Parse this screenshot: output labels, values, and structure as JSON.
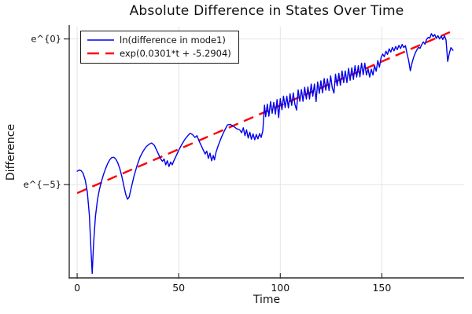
{
  "chart_data": {
    "type": "line",
    "title": "Absolute Difference in States Over Time",
    "xlabel": "Time",
    "ylabel": "Difference",
    "y_scale": "ln",
    "grid": true,
    "legend_position": "top-left",
    "xlim": [
      -3.9,
      190.5
    ],
    "ylim_ln": [
      -8.2,
      0.42
    ],
    "x_ticks": [
      {
        "label": "0",
        "value": 0
      },
      {
        "label": "50",
        "value": 50
      },
      {
        "label": "100",
        "value": 100
      },
      {
        "label": "150",
        "value": 150
      }
    ],
    "y_ticks": [
      {
        "label": "e^{0}",
        "value": 0
      },
      {
        "label": "e^{−5}",
        "value": -5
      }
    ],
    "series": [
      {
        "name": "ln(difference in mode1)",
        "color": "#0000ee",
        "style": "solid",
        "width": 1.4,
        "points_t_ln": [
          [
            0,
            -4.54
          ],
          [
            1,
            -4.5
          ],
          [
            2,
            -4.52
          ],
          [
            3,
            -4.62
          ],
          [
            4,
            -4.85
          ],
          [
            5,
            -5.25
          ],
          [
            6,
            -6.05
          ],
          [
            6.8,
            -7.2
          ],
          [
            7.4,
            -8.05
          ],
          [
            8.1,
            -7.0
          ],
          [
            9,
            -6.1
          ],
          [
            10,
            -5.52
          ],
          [
            11,
            -5.15
          ],
          [
            12,
            -4.88
          ],
          [
            13,
            -4.65
          ],
          [
            14,
            -4.45
          ],
          [
            15,
            -4.28
          ],
          [
            16,
            -4.15
          ],
          [
            17,
            -4.07
          ],
          [
            18,
            -4.06
          ],
          [
            19,
            -4.12
          ],
          [
            20,
            -4.25
          ],
          [
            21,
            -4.45
          ],
          [
            22,
            -4.72
          ],
          [
            23,
            -5.05
          ],
          [
            24,
            -5.35
          ],
          [
            24.8,
            -5.5
          ],
          [
            25.6,
            -5.42
          ],
          [
            26.5,
            -5.15
          ],
          [
            28,
            -4.7
          ],
          [
            29.5,
            -4.35
          ],
          [
            31,
            -4.05
          ],
          [
            32.5,
            -3.85
          ],
          [
            34,
            -3.7
          ],
          [
            35.5,
            -3.61
          ],
          [
            36.7,
            -3.57
          ],
          [
            38,
            -3.65
          ],
          [
            39,
            -3.8
          ],
          [
            40,
            -3.95
          ],
          [
            41,
            -4.1
          ],
          [
            42,
            -4.2
          ],
          [
            42.8,
            -4.12
          ],
          [
            43.6,
            -4.32
          ],
          [
            44.4,
            -4.18
          ],
          [
            45.2,
            -4.38
          ],
          [
            46,
            -4.22
          ],
          [
            46.8,
            -4.32
          ],
          [
            47.6,
            -4.18
          ],
          [
            48.5,
            -4.05
          ],
          [
            50,
            -3.82
          ],
          [
            51.5,
            -3.62
          ],
          [
            53,
            -3.45
          ],
          [
            54.5,
            -3.32
          ],
          [
            55.6,
            -3.24
          ],
          [
            56.8,
            -3.28
          ],
          [
            58,
            -3.38
          ],
          [
            59,
            -3.32
          ],
          [
            60,
            -3.5
          ],
          [
            61,
            -3.65
          ],
          [
            62,
            -3.8
          ],
          [
            63,
            -3.95
          ],
          [
            63.8,
            -3.85
          ],
          [
            64.6,
            -4.1
          ],
          [
            65.4,
            -3.92
          ],
          [
            66.2,
            -4.18
          ],
          [
            67,
            -4.0
          ],
          [
            67.6,
            -4.15
          ],
          [
            68.4,
            -3.88
          ],
          [
            69.5,
            -3.65
          ],
          [
            71,
            -3.38
          ],
          [
            72.5,
            -3.15
          ],
          [
            74,
            -2.95
          ],
          [
            75.3,
            -2.93
          ],
          [
            77,
            -3.0
          ],
          [
            78.5,
            -3.08
          ],
          [
            80,
            -3.12
          ],
          [
            81,
            -3.22
          ],
          [
            81.8,
            -3.05
          ],
          [
            82.6,
            -3.32
          ],
          [
            83.4,
            -3.12
          ],
          [
            84.2,
            -3.4
          ],
          [
            85,
            -3.2
          ],
          [
            85.8,
            -3.44
          ],
          [
            86.6,
            -3.26
          ],
          [
            87.4,
            -3.46
          ],
          [
            88.2,
            -3.28
          ],
          [
            89,
            -3.43
          ],
          [
            89.8,
            -3.25
          ],
          [
            90.6,
            -3.38
          ],
          [
            91.4,
            -3.15
          ],
          [
            92.2,
            -2.27
          ],
          [
            92.8,
            -2.67
          ],
          [
            93.6,
            -2.24
          ],
          [
            94.4,
            -2.65
          ],
          [
            95.2,
            -2.15
          ],
          [
            96,
            -2.55
          ],
          [
            96.8,
            -2.18
          ],
          [
            97.6,
            -2.58
          ],
          [
            98.4,
            -2.08
          ],
          [
            99.2,
            -2.7
          ],
          [
            100,
            -2.05
          ],
          [
            100.8,
            -2.43
          ],
          [
            101.6,
            -1.96
          ],
          [
            102.4,
            -2.36
          ],
          [
            103.2,
            -1.96
          ],
          [
            104,
            -2.37
          ],
          [
            104.8,
            -1.88
          ],
          [
            105.6,
            -2.28
          ],
          [
            106.4,
            -1.85
          ],
          [
            107.2,
            -2.25
          ],
          [
            108,
            -2.44
          ],
          [
            108.8,
            -1.75
          ],
          [
            109.6,
            -2.14
          ],
          [
            110.4,
            -1.74
          ],
          [
            111.2,
            -2.14
          ],
          [
            112,
            -1.66
          ],
          [
            112.8,
            -2.06
          ],
          [
            113.6,
            -1.65
          ],
          [
            114.4,
            -2.06
          ],
          [
            115.2,
            -1.55
          ],
          [
            116,
            -1.97
          ],
          [
            116.8,
            -1.55
          ],
          [
            117.6,
            -2.15
          ],
          [
            118.4,
            -1.48
          ],
          [
            119.2,
            -1.87
          ],
          [
            120,
            -1.44
          ],
          [
            120.8,
            -1.85
          ],
          [
            121.6,
            -1.36
          ],
          [
            122.4,
            -1.76
          ],
          [
            123.2,
            -1.37
          ],
          [
            124,
            -1.77
          ],
          [
            124.8,
            -1.27
          ],
          [
            125.6,
            -1.68
          ],
          [
            126.4,
            -1.86
          ],
          [
            127.2,
            -1.21
          ],
          [
            128,
            -1.61
          ],
          [
            128.8,
            -1.18
          ],
          [
            129.6,
            -1.59
          ],
          [
            130.4,
            -1.1
          ],
          [
            131.2,
            -1.5
          ],
          [
            132,
            -1.1
          ],
          [
            132.8,
            -1.5
          ],
          [
            133.6,
            -1.01
          ],
          [
            134.4,
            -1.42
          ],
          [
            135.2,
            -0.99
          ],
          [
            136,
            -1.39
          ],
          [
            136.8,
            -0.92
          ],
          [
            137.6,
            -1.31
          ],
          [
            138.4,
            -0.92
          ],
          [
            139.2,
            -1.3
          ],
          [
            140,
            -0.83
          ],
          [
            140.8,
            -1.23
          ],
          [
            141.6,
            -0.83
          ],
          [
            142.4,
            -1.24
          ],
          [
            143.2,
            -1.03
          ],
          [
            144,
            -1.31
          ],
          [
            144.8,
            -1.04
          ],
          [
            145.6,
            -1.24
          ],
          [
            146.4,
            -0.92
          ],
          [
            147.2,
            -1.11
          ],
          [
            148,
            -0.74
          ],
          [
            148.8,
            -0.97
          ],
          [
            149.6,
            -0.64
          ],
          [
            150.4,
            -0.52
          ],
          [
            151.2,
            -0.61
          ],
          [
            152,
            -0.42
          ],
          [
            152.8,
            -0.53
          ],
          [
            153.6,
            -0.34
          ],
          [
            154.4,
            -0.45
          ],
          [
            155.2,
            -0.29
          ],
          [
            156,
            -0.41
          ],
          [
            156.8,
            -0.26
          ],
          [
            157.6,
            -0.37
          ],
          [
            158.4,
            -0.22
          ],
          [
            159.2,
            -0.33
          ],
          [
            160,
            -0.19
          ],
          [
            160.8,
            -0.3
          ],
          [
            161.6,
            -0.23
          ],
          [
            162.4,
            -0.5
          ],
          [
            163.2,
            -0.74
          ],
          [
            164,
            -1.09
          ],
          [
            164.8,
            -0.84
          ],
          [
            165.6,
            -0.64
          ],
          [
            166.4,
            -0.49
          ],
          [
            167.2,
            -0.38
          ],
          [
            168,
            -0.29
          ],
          [
            168.8,
            -0.32
          ],
          [
            169.6,
            -0.2
          ],
          [
            170.4,
            -0.1
          ],
          [
            171.2,
            -0.18
          ],
          [
            172,
            -0.02
          ],
          [
            172.8,
            0.05
          ],
          [
            173.6,
            0.03
          ],
          [
            174.4,
            0.18
          ],
          [
            175.2,
            0.08
          ],
          [
            176,
            0.15
          ],
          [
            176.8,
            0.02
          ],
          [
            177.6,
            0.11
          ],
          [
            178.4,
            0.0
          ],
          [
            179.2,
            0.1
          ],
          [
            180,
            -0.02
          ],
          [
            180.8,
            0.11
          ],
          [
            181.6,
            -0.04
          ],
          [
            182.4,
            -0.77
          ],
          [
            183.2,
            -0.5
          ],
          [
            184,
            -0.3
          ],
          [
            185,
            -0.39
          ]
        ]
      },
      {
        "name": "exp(0.0301*t + -5.2904)",
        "color": "#ff0000",
        "style": "dashed",
        "width": 2.4,
        "fit": {
          "slope": 0.0301,
          "intercept": -5.2904,
          "t_range": [
            0,
            183.5
          ]
        }
      }
    ]
  },
  "style_colors": {
    "gridline": "#e4e4e4",
    "spine": "#2f2f2f",
    "tick_text": "#111111"
  }
}
